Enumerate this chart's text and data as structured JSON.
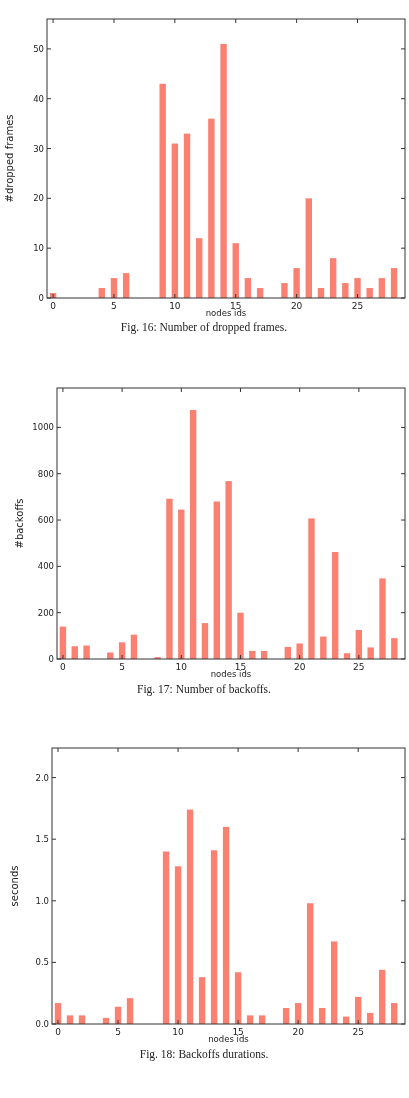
{
  "chart_data": [
    {
      "type": "bar",
      "x": [
        0,
        1,
        2,
        3,
        4,
        5,
        6,
        7,
        8,
        9,
        10,
        11,
        12,
        13,
        14,
        15,
        16,
        17,
        18,
        19,
        20,
        21,
        22,
        23,
        24,
        25,
        26,
        27,
        28
      ],
      "values": [
        1,
        0,
        0,
        0,
        2,
        4,
        5,
        0,
        0,
        43,
        31,
        33,
        12,
        36,
        51,
        11,
        4,
        2,
        0,
        3,
        6,
        20,
        2,
        8,
        3,
        4,
        2,
        4,
        6
      ],
      "color": "#fa8072",
      "xlim": [
        -0.5,
        28.9
      ],
      "xticks": [
        0,
        5,
        10,
        15,
        20,
        25
      ],
      "ylim": [
        0,
        56
      ],
      "yticks": [
        0,
        10,
        20,
        30,
        40,
        50
      ],
      "xlabel": "nodes ids",
      "ylabel": "#dropped frames",
      "annotations": [
        "Fig. 16: Number of dropped frames."
      ]
    },
    {
      "type": "bar",
      "x": [
        0,
        1,
        2,
        3,
        4,
        5,
        6,
        7,
        8,
        9,
        10,
        11,
        12,
        13,
        14,
        15,
        16,
        17,
        18,
        19,
        20,
        21,
        22,
        23,
        24,
        25,
        26,
        27,
        28
      ],
      "values": [
        140,
        55,
        58,
        0,
        28,
        72,
        105,
        0,
        8,
        692,
        645,
        1075,
        155,
        680,
        768,
        200,
        35,
        35,
        0,
        52,
        67,
        607,
        97,
        462,
        25,
        125,
        50,
        348,
        90
      ],
      "color": "#fa8072",
      "xlim": [
        -0.5,
        28.9
      ],
      "xticks": [
        0,
        5,
        10,
        15,
        20,
        25
      ],
      "ylim": [
        0,
        1170
      ],
      "yticks": [
        0,
        200,
        400,
        600,
        800,
        1000
      ],
      "xlabel": "nodes ids",
      "ylabel": "#backoffs",
      "annotations": [
        "Fig. 17: Number of backoffs."
      ]
    },
    {
      "type": "bar",
      "x": [
        0,
        1,
        2,
        3,
        4,
        5,
        6,
        7,
        8,
        9,
        10,
        11,
        12,
        13,
        14,
        15,
        16,
        17,
        18,
        19,
        20,
        21,
        22,
        23,
        24,
        25,
        26,
        27,
        28
      ],
      "values": [
        0.17,
        0.07,
        0.07,
        0,
        0.05,
        0.14,
        0.21,
        0,
        0,
        1.4,
        1.28,
        1.74,
        0.38,
        1.41,
        1.6,
        0.42,
        0.07,
        0.07,
        0,
        0.13,
        0.17,
        0.98,
        0.13,
        0.67,
        0.06,
        0.22,
        0.09,
        0.44,
        0.17
      ],
      "color": "#fa8072",
      "xlim": [
        -0.5,
        28.9
      ],
      "xticks": [
        0,
        5,
        10,
        15,
        20,
        25
      ],
      "ylim": [
        0,
        2.24
      ],
      "yticks": [
        {
          "value": 0,
          "label": "0.0"
        },
        {
          "value": 0.5,
          "label": "0.5"
        },
        {
          "value": 1,
          "label": "1.0"
        },
        {
          "value": 1.5,
          "label": "1.5"
        },
        {
          "value": 2,
          "label": "2.0"
        }
      ],
      "xlabel": "nodes ids",
      "ylabel": "seconds",
      "annotations": [
        "Fig. 18: Backoffs durations."
      ]
    }
  ]
}
